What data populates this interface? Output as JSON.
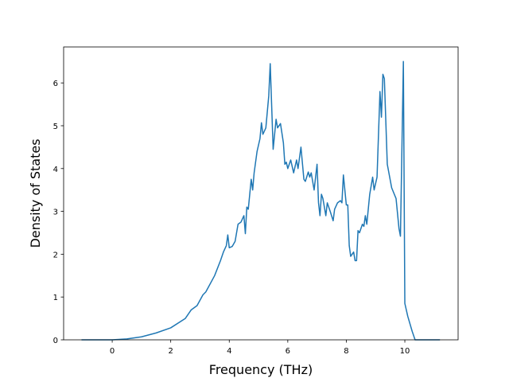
{
  "chart_data": {
    "type": "line",
    "xlabel": "Frequency (THz)",
    "ylabel": "Density of States",
    "xlim": [
      -1.66,
      11.82
    ],
    "ylim": [
      0,
      6.84
    ],
    "xticks": [
      0,
      2,
      4,
      6,
      8,
      10
    ],
    "yticks": [
      0,
      1,
      2,
      3,
      4,
      5,
      6
    ],
    "series": [
      {
        "color": "#1f77b4",
        "x": [
          -1.05,
          0,
          0.5,
          1,
          1.5,
          2,
          2.5,
          2.6,
          2.7,
          2.9,
          3.1,
          3.2,
          3.5,
          3.7,
          3.8,
          3.9,
          3.95,
          4.0,
          4.1,
          4.2,
          4.3,
          4.4,
          4.5,
          4.55,
          4.6,
          4.65,
          4.75,
          4.8,
          4.85,
          4.95,
          5.05,
          5.1,
          5.15,
          5.25,
          5.35,
          5.4,
          5.5,
          5.6,
          5.65,
          5.75,
          5.85,
          5.9,
          5.95,
          6.0,
          6.1,
          6.2,
          6.3,
          6.35,
          6.45,
          6.55,
          6.6,
          6.7,
          6.75,
          6.8,
          6.9,
          7.0,
          7.05,
          7.1,
          7.15,
          7.2,
          7.25,
          7.3,
          7.35,
          7.45,
          7.55,
          7.6,
          7.7,
          7.8,
          7.85,
          7.9,
          8.0,
          8.05,
          8.1,
          8.15,
          8.25,
          8.3,
          8.35,
          8.4,
          8.45,
          8.55,
          8.6,
          8.65,
          8.7,
          8.8,
          8.9,
          8.95,
          9.05,
          9.15,
          9.2,
          9.25,
          9.3,
          9.4,
          9.55,
          9.7,
          9.8,
          9.85,
          9.95,
          10.0,
          10.1,
          10.25,
          10.35,
          11.2
        ],
        "values": [
          0,
          0,
          0.02,
          0.07,
          0.16,
          0.28,
          0.5,
          0.6,
          0.7,
          0.8,
          1.05,
          1.12,
          1.5,
          1.85,
          2.05,
          2.2,
          2.45,
          2.15,
          2.18,
          2.3,
          2.7,
          2.75,
          2.9,
          2.48,
          3.1,
          3.05,
          3.75,
          3.5,
          3.9,
          4.4,
          4.7,
          5.07,
          4.8,
          4.95,
          5.7,
          6.45,
          4.45,
          5.15,
          4.95,
          5.05,
          4.6,
          4.1,
          4.15,
          4.0,
          4.2,
          3.9,
          4.2,
          4.0,
          4.5,
          3.75,
          3.7,
          3.92,
          3.8,
          3.9,
          3.5,
          4.1,
          3.2,
          2.9,
          3.4,
          3.3,
          3.1,
          2.9,
          3.2,
          3.0,
          2.78,
          3.05,
          3.2,
          3.25,
          3.2,
          3.85,
          3.15,
          3.15,
          2.2,
          1.95,
          2.05,
          1.85,
          1.85,
          2.55,
          2.5,
          2.7,
          2.65,
          2.9,
          2.7,
          3.4,
          3.8,
          3.5,
          3.8,
          5.8,
          5.2,
          6.2,
          6.1,
          4.1,
          3.55,
          3.3,
          2.6,
          2.42,
          6.5,
          0.85,
          0.55,
          0.2,
          0,
          0
        ]
      }
    ]
  }
}
